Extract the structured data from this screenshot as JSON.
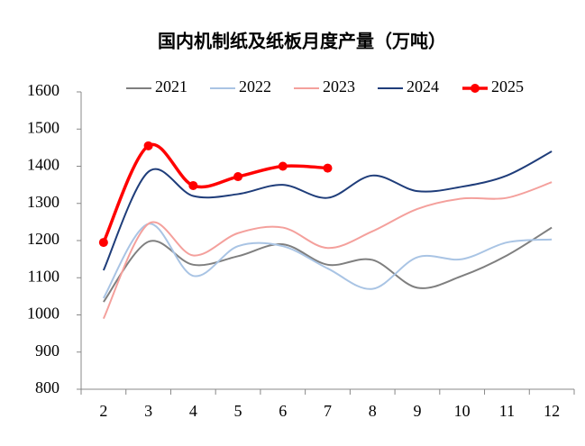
{
  "chart_data": {
    "type": "line",
    "title": "国内机制纸及纸板月度产量（万吨）",
    "categories": [
      "2",
      "3",
      "4",
      "5",
      "6",
      "7",
      "8",
      "9",
      "10",
      "11",
      "12"
    ],
    "series": [
      {
        "name": "2021",
        "color": "#7f7f7f",
        "values": [
          1035,
          1197,
          1135,
          1158,
          1190,
          1135,
          1148,
          1073,
          1105,
          1160,
          1235
        ]
      },
      {
        "name": "2022",
        "color": "#a9c4e4",
        "values": [
          1045,
          1245,
          1105,
          1185,
          1185,
          1125,
          1070,
          1155,
          1150,
          1195,
          1203
        ]
      },
      {
        "name": "2023",
        "color": "#f4a09c",
        "values": [
          990,
          1245,
          1160,
          1220,
          1235,
          1180,
          1225,
          1285,
          1313,
          1315,
          1357
        ]
      },
      {
        "name": "2024",
        "color": "#1f3d7a",
        "values": [
          1120,
          1385,
          1320,
          1325,
          1350,
          1315,
          1375,
          1333,
          1345,
          1375,
          1440
        ]
      },
      {
        "name": "2025",
        "color": "#ff0000",
        "values": [
          1195,
          1455,
          1348,
          1372,
          1400,
          1395,
          null,
          null,
          null,
          null,
          null
        ]
      }
    ],
    "ylim": [
      800,
      1600
    ],
    "yticks": [
      800,
      900,
      1000,
      1100,
      1200,
      1300,
      1400,
      1500,
      1600
    ]
  }
}
